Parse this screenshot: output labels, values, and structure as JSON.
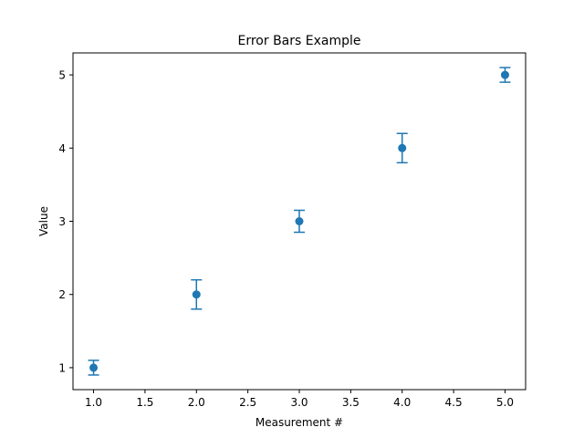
{
  "chart_data": {
    "type": "scatter",
    "title": "Error Bars Example",
    "xlabel": "Measurement #",
    "ylabel": "Value",
    "xlim": [
      0.8,
      5.2
    ],
    "ylim": [
      0.7,
      5.3
    ],
    "xticks": [
      1.0,
      1.5,
      2.0,
      2.5,
      3.0,
      3.5,
      4.0,
      4.5,
      5.0
    ],
    "xtick_labels": [
      "1.0",
      "1.5",
      "2.0",
      "2.5",
      "3.0",
      "3.5",
      "4.0",
      "4.5",
      "5.0"
    ],
    "yticks": [
      1,
      2,
      3,
      4,
      5
    ],
    "ytick_labels": [
      "1",
      "2",
      "3",
      "4",
      "5"
    ],
    "grid": false,
    "series": [
      {
        "color": "#1f77b4",
        "x": [
          1,
          2,
          3,
          4,
          5
        ],
        "y": [
          1,
          2,
          3,
          4,
          5
        ],
        "yerr": [
          0.1,
          0.2,
          0.15,
          0.2,
          0.1
        ]
      }
    ]
  }
}
